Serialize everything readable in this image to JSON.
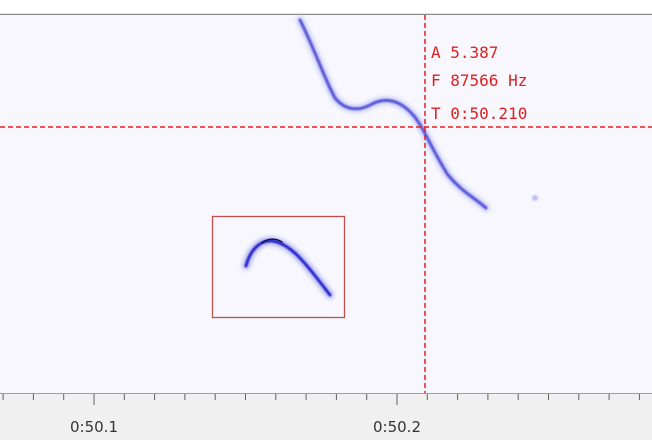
{
  "readout": {
    "amplitude": "A 5.387",
    "frequency": "F 87566 Hz",
    "time": "T 0:50.210"
  },
  "time_axis": {
    "labels": [
      "0:50.1",
      "0:50.2"
    ]
  }
}
